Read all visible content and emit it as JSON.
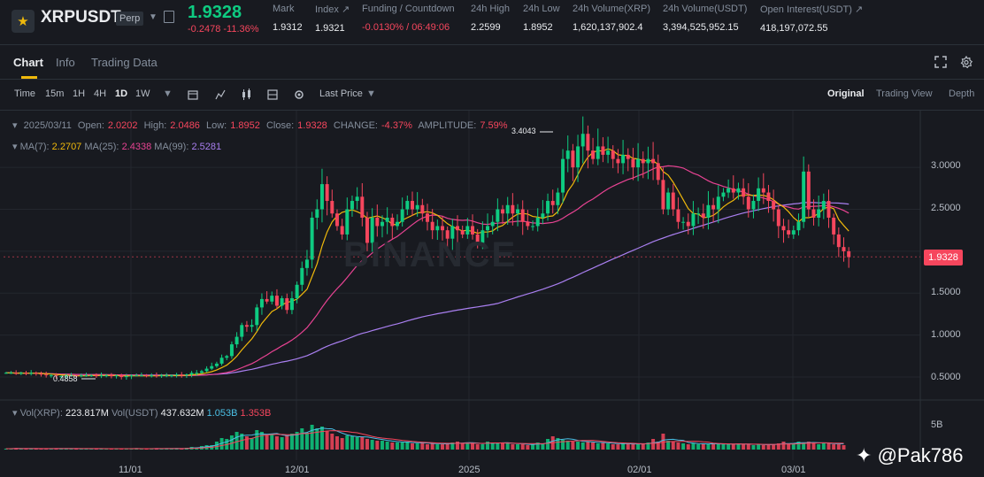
{
  "header": {
    "symbol": "XRPUSDT",
    "contract_type": "Perp",
    "last_price": "1.9328",
    "change": "-0.2478 -11.36%",
    "stats": [
      {
        "label": "Mark",
        "value": "1.9312"
      },
      {
        "label": "Index ↗",
        "value": "1.9321"
      },
      {
        "label": "Funding / Countdown",
        "value": "-0.0130% / 06:49:06"
      },
      {
        "label": "24h High",
        "value": "2.2599"
      },
      {
        "label": "24h Low",
        "value": "1.8952"
      },
      {
        "label": "24h Volume(XRP)",
        "value": "1,620,137,902.4"
      },
      {
        "label": "24h Volume(USDT)",
        "value": "3,394,525,952.15"
      },
      {
        "label": "Open Interest(USDT) ↗",
        "value": "418,197,072.55"
      }
    ]
  },
  "tabs": {
    "chart": "Chart",
    "info": "Info",
    "trading_data": "Trading Data"
  },
  "toolbar": {
    "time": "Time",
    "m15": "15m",
    "h1": "1H",
    "h4": "4H",
    "d1": "1D",
    "w1": "1W",
    "price_type": "Last Price",
    "views": {
      "original": "Original",
      "trading_view": "Trading View",
      "depth": "Depth"
    }
  },
  "ohlc": {
    "date": "2025/03/11",
    "open_label": "Open:",
    "open": "2.0202",
    "high_label": "High:",
    "high": "2.0486",
    "low_label": "Low:",
    "low": "1.8952",
    "close_label": "Close:",
    "close": "1.9328",
    "change_label": "CHANGE:",
    "change": "-4.37%",
    "amplitude_label": "AMPLITUDE:",
    "amplitude": "7.59%"
  },
  "ma": {
    "ma7_label": "MA(7):",
    "ma7": "2.2707",
    "ma25_label": "MA(25):",
    "ma25": "2.4338",
    "ma99_label": "MA(99):",
    "ma99": "2.5281"
  },
  "volume": {
    "vol_xrp_label": "Vol(XRP):",
    "vol_xrp": "223.817M",
    "vol_usdt_label": "Vol(USDT)",
    "vol_usdt": "437.632M",
    "v1": "1.053B",
    "v2": "1.353B"
  },
  "watermark": "BINANCE",
  "credit": "@Pak786",
  "colors": {
    "up": "#0ecb81",
    "down": "#f6465d",
    "ma7": "#f0b90b",
    "ma25": "#e84393",
    "ma99": "#a97ff0",
    "accent": "#f0b90b"
  },
  "chart_data": {
    "type": "candlestick",
    "y_ticks": [
      "3.0000",
      "2.5000",
      "2.0000",
      "1.5000",
      "1.0000",
      "0.5000"
    ],
    "x_ticks": [
      "11/01",
      "12/01",
      "2025",
      "02/01",
      "03/01"
    ],
    "volume_tick": "5B",
    "current_price": "1.9328",
    "high_marker": "3.4043",
    "low_marker": "0.4858",
    "ylim": [
      0.3,
      3.55
    ],
    "closes": [
      0.55,
      0.55,
      0.54,
      0.55,
      0.54,
      0.55,
      0.54,
      0.53,
      0.52,
      0.52,
      0.51,
      0.51,
      0.52,
      0.52,
      0.51,
      0.52,
      0.52,
      0.52,
      0.51,
      0.52,
      0.52,
      0.51,
      0.52,
      0.5,
      0.51,
      0.52,
      0.52,
      0.52,
      0.51,
      0.52,
      0.51,
      0.52,
      0.52,
      0.52,
      0.53,
      0.52,
      0.53,
      0.55,
      0.55,
      0.57,
      0.6,
      0.63,
      0.66,
      0.73,
      0.75,
      0.89,
      0.98,
      1.12,
      1.1,
      1.12,
      1.33,
      1.43,
      1.4,
      1.47,
      1.35,
      1.44,
      1.3,
      1.44,
      1.6,
      1.8,
      1.9,
      2.4,
      2.5,
      2.8,
      2.6,
      2.45,
      2.3,
      2.2,
      2.5,
      2.6,
      2.65,
      2.4,
      2.1,
      2.4,
      2.3,
      2.35,
      2.4,
      2.3,
      2.35,
      2.5,
      2.6,
      2.5,
      2.55,
      2.45,
      2.35,
      2.25,
      2.3,
      2.25,
      2.15,
      2.3,
      2.25,
      2.2,
      2.3,
      2.2,
      2.1,
      2.25,
      2.3,
      2.35,
      2.5,
      2.45,
      2.55,
      2.45,
      2.5,
      2.35,
      2.3,
      2.3,
      2.4,
      2.45,
      2.6,
      2.55,
      2.7,
      3.1,
      3.2,
      3.0,
      3.25,
      3.4,
      3.2,
      3.1,
      3.25,
      3.15,
      3.2,
      3.1,
      3.05,
      3.15,
      3.1,
      3.0,
      3.1,
      3.05,
      3.1,
      3.05,
      2.85,
      2.5,
      2.7,
      2.5,
      2.35,
      2.35,
      2.3,
      2.45,
      2.45,
      2.4,
      2.55,
      2.5,
      2.65,
      2.7,
      2.75,
      2.7,
      2.75,
      2.65,
      2.5,
      2.6,
      2.75,
      2.7,
      2.6,
      2.5,
      2.3,
      2.25,
      2.2,
      2.25,
      2.35,
      2.95,
      2.5,
      2.4,
      2.5,
      2.6,
      2.4,
      2.2,
      2.05,
      2.0,
      1.93
    ],
    "volumes": [
      0.1,
      0.1,
      0.15,
      0.1,
      0.1,
      0.12,
      0.1,
      0.1,
      0.1,
      0.1,
      0.15,
      0.1,
      0.12,
      0.1,
      0.1,
      0.1,
      0.1,
      0.12,
      0.1,
      0.1,
      0.1,
      0.1,
      0.12,
      0.1,
      0.1,
      0.1,
      0.12,
      0.1,
      0.1,
      0.1,
      0.12,
      0.1,
      0.12,
      0.1,
      0.15,
      0.1,
      0.2,
      0.3,
      0.25,
      0.4,
      0.5,
      0.5,
      0.9,
      1.3,
      1.2,
      1.6,
      2.0,
      1.8,
      1.5,
      1.3,
      2.2,
      2.0,
      1.6,
      1.8,
      1.5,
      1.4,
      1.6,
      1.8,
      2.0,
      2.4,
      1.9,
      2.8,
      2.4,
      2.6,
      2.1,
      1.8,
      1.5,
      1.3,
      1.6,
      1.5,
      1.4,
      1.4,
      1.2,
      1.1,
      1.0,
      1.0,
      0.9,
      0.8,
      0.8,
      0.8,
      0.9,
      0.7,
      0.7,
      0.8,
      0.6,
      0.7,
      0.6,
      0.6,
      0.7,
      0.8,
      0.9,
      0.7,
      0.8,
      0.7,
      0.6,
      0.6,
      0.9,
      0.8,
      0.7,
      0.8,
      0.7,
      0.6,
      0.6,
      0.6,
      0.5,
      0.6,
      0.8,
      0.7,
      1.2,
      1.5,
      1.3,
      1.1,
      1.0,
      0.9,
      0.9,
      0.8,
      0.9,
      0.8,
      0.7,
      0.8,
      0.7,
      0.6,
      0.6,
      0.7,
      0.7,
      0.6,
      0.6,
      0.6,
      0.8,
      1.2,
      0.9,
      1.8,
      1.0,
      0.9,
      0.8,
      0.7,
      0.6,
      0.7,
      0.6,
      0.7,
      0.6,
      0.7,
      0.6,
      0.6,
      0.6,
      0.6,
      0.7,
      0.6,
      0.6,
      0.5,
      0.6,
      0.5,
      0.6,
      0.6,
      0.7,
      0.9,
      0.6,
      0.7,
      0.9,
      0.8,
      0.9,
      0.7,
      0.6,
      0.8,
      0.7,
      0.6,
      0.6,
      0.5
    ]
  }
}
